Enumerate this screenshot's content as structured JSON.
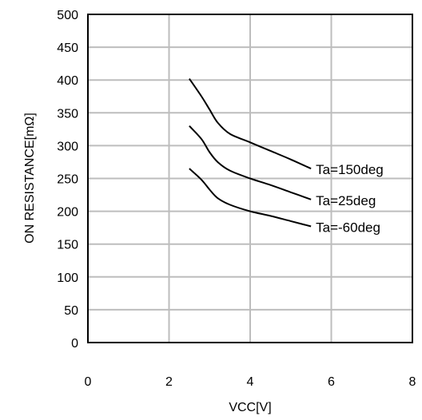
{
  "chart_data": {
    "type": "line",
    "title": "",
    "xlabel": "VCC[V]",
    "ylabel": "ON RESISTANCE[mΩ]",
    "xlim": [
      0,
      8
    ],
    "ylim": [
      0,
      500
    ],
    "x_ticks": [
      0,
      2,
      4,
      6,
      8
    ],
    "y_ticks": [
      0,
      50,
      100,
      150,
      200,
      250,
      300,
      350,
      400,
      450,
      500
    ],
    "x_tick_labels": [
      "0",
      "2",
      "4",
      "6",
      "8"
    ],
    "y_tick_labels": [
      "0",
      "50",
      "100",
      "150",
      "200",
      "250",
      "300",
      "350",
      "400",
      "450",
      "500"
    ],
    "grid": true,
    "legend": "none",
    "series": [
      {
        "name": "Ta=150deg",
        "x": [
          2.5,
          2.8,
          3.0,
          3.2,
          3.5,
          4.0,
          4.5,
          5.0,
          5.5
        ],
        "y": [
          402,
          375,
          355,
          335,
          318,
          305,
          292,
          279,
          265
        ]
      },
      {
        "name": "Ta=25deg",
        "x": [
          2.5,
          2.8,
          3.0,
          3.2,
          3.5,
          4.0,
          4.5,
          5.0,
          5.5
        ],
        "y": [
          330,
          310,
          290,
          275,
          262,
          250,
          240,
          229,
          218
        ]
      },
      {
        "name": "Ta=-60deg",
        "x": [
          2.5,
          2.8,
          3.0,
          3.2,
          3.5,
          4.0,
          4.5,
          5.0,
          5.5
        ],
        "y": [
          265,
          248,
          233,
          220,
          210,
          200,
          193,
          185,
          177
        ]
      }
    ]
  }
}
